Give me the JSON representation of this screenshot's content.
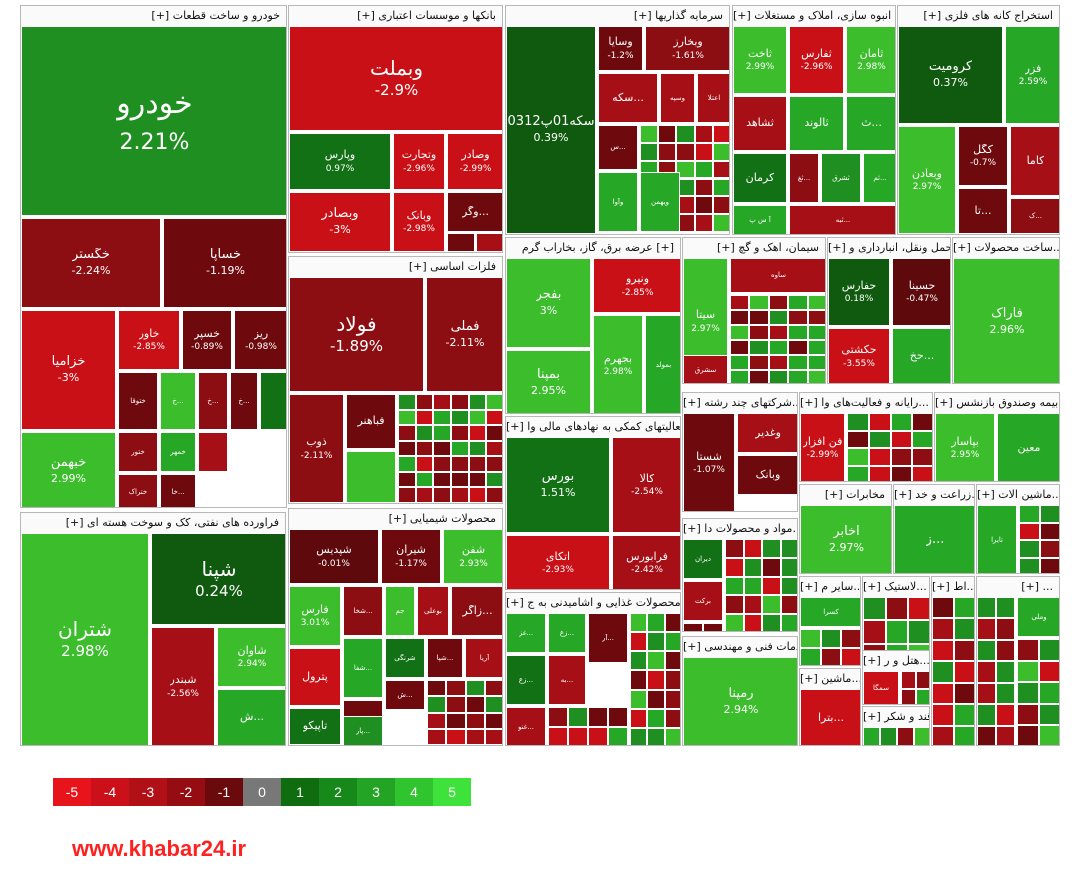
{
  "chart_data": {
    "type": "treemap",
    "sectors": [
      {
        "id": "auto",
        "title": "[+] خودرو و ساخت قطعات",
        "tiles": [
          {
            "name": "خودرو",
            "value": "2.21%",
            "change": 2.21
          },
          {
            "name": "خگستر",
            "value": "-2.24%",
            "change": -2.24
          },
          {
            "name": "خساپا",
            "value": "-1.19%",
            "change": -1.19
          },
          {
            "name": "خزامیا",
            "value": "-3%",
            "change": -3
          },
          {
            "name": "خاور",
            "value": "-2.85%",
            "change": -2.85
          },
          {
            "name": "خسپر",
            "value": "-0.89%",
            "change": -0.89
          },
          {
            "name": "ریز",
            "value": "-0.98%",
            "change": -0.98
          },
          {
            "name": "ختوقا",
            "value": "",
            "change": -1.5
          },
          {
            "name": "خ...",
            "value": "",
            "change": 3
          },
          {
            "name": "خ...",
            "value": "",
            "change": -2
          },
          {
            "name": "خ...",
            "value": "",
            "change": -1.2
          },
          {
            "name": "",
            "value": "",
            "change": 1.5
          },
          {
            "name": "خبهمن",
            "value": "2.99%",
            "change": 2.99
          },
          {
            "name": "ختور",
            "value": "",
            "change": -1.8
          },
          {
            "name": "خمهر",
            "value": "",
            "change": 2.5
          },
          {
            "name": "",
            "value": "",
            "change": -2.5
          },
          {
            "name": "ختراک",
            "value": "",
            "change": -2.2
          },
          {
            "name": "خا...",
            "value": "",
            "change": -1.3
          }
        ]
      },
      {
        "id": "banks",
        "title": "[+] بانکها و موسسات اعتباری",
        "tiles": [
          {
            "name": "وبملت",
            "value": "-2.9%",
            "change": -2.9
          },
          {
            "name": "وپارس",
            "value": "0.97%",
            "change": 0.97
          },
          {
            "name": "وتجارت",
            "value": "-2.96%",
            "change": -2.96
          },
          {
            "name": "وصادر",
            "value": "-2.99%",
            "change": -2.99
          },
          {
            "name": "وبصادر",
            "value": "-3%",
            "change": -3
          },
          {
            "name": "وبانک",
            "value": "-2.98%",
            "change": -2.98
          },
          {
            "name": "وگر...",
            "value": "",
            "change": -1.5
          },
          {
            "name": "",
            "value": "",
            "change": -1.1
          },
          {
            "name": "",
            "value": "",
            "change": -2.6
          }
        ]
      },
      {
        "id": "invest",
        "title": "[+] سرمایه گذاریها",
        "tiles": [
          {
            "name": "0312سکه01پ",
            "value": "0.39%",
            "change": 0.39
          },
          {
            "name": "وسایا",
            "value": "-1.2%",
            "change": -1.2
          },
          {
            "name": "وبخارز",
            "value": "-1.61%",
            "change": -1.61
          },
          {
            "name": "سکه...",
            "value": "",
            "change": -2.6
          },
          {
            "name": "وسپه",
            "value": "",
            "change": -2.7
          },
          {
            "name": "اعتلا",
            "value": "",
            "change": -2.4
          },
          {
            "name": "س...",
            "value": "",
            "change": -1.1
          },
          {
            "name": "وآوا",
            "value": "",
            "change": 2.4
          },
          {
            "name": "ویهمن",
            "value": "",
            "change": 2.6
          }
        ]
      },
      {
        "id": "housing",
        "title": "[+] انبوه سازی، املاک و مستغلات",
        "tiles": [
          {
            "name": "ثاخت",
            "value": "2.99%",
            "change": 2.99
          },
          {
            "name": "ثفارس",
            "value": "-2.96%",
            "change": -2.96
          },
          {
            "name": "ثامان",
            "value": "2.98%",
            "change": 2.98
          },
          {
            "name": "ثشاهد",
            "value": "",
            "change": -2.4
          },
          {
            "name": "ثالوند",
            "value": "",
            "change": 2.5
          },
          {
            "name": "ث...",
            "value": "",
            "change": 2.6
          },
          {
            "name": "کرمان",
            "value": "",
            "change": 1.3
          },
          {
            "name": "ثغ...",
            "value": "",
            "change": -2.2
          },
          {
            "name": "ثشرق",
            "value": "",
            "change": 2.3
          },
          {
            "name": "ثم...",
            "value": "",
            "change": 2.7
          },
          {
            "name": "آ س پ",
            "value": "",
            "change": 2.5
          },
          {
            "name": "ثبه...",
            "value": "",
            "change": -2.5
          }
        ]
      },
      {
        "id": "mining",
        "title": "[+] استخراج کانه های فلزی",
        "tiles": [
          {
            "name": "کرومیت",
            "value": "0.37%",
            "change": 0.37
          },
          {
            "name": "فزر",
            "value": "2.59%",
            "change": 2.59
          },
          {
            "name": "وبعادن",
            "value": "2.97%",
            "change": 2.97
          },
          {
            "name": "کگل",
            "value": "-0.7%",
            "change": -0.7
          },
          {
            "name": "کاما",
            "value": "",
            "change": -2.6
          },
          {
            "name": "تا...",
            "value": "",
            "change": -1.1
          },
          {
            "name": "ک...",
            "value": "",
            "change": -2.2
          }
        ]
      },
      {
        "id": "metals",
        "title": "[+] فلزات اساسی",
        "tiles": [
          {
            "name": "فولاد",
            "value": "-1.89%",
            "change": -1.89
          },
          {
            "name": "فملی",
            "value": "-2.11%",
            "change": -2.11
          },
          {
            "name": "ذوب",
            "value": "-2.11%",
            "change": -2.11
          },
          {
            "name": "فباهنر",
            "value": "",
            "change": -1.5
          },
          {
            "name": "",
            "value": "",
            "change": 4.5
          }
        ]
      },
      {
        "id": "chem",
        "title": "[+] محصولات شیمیایی",
        "tiles": [
          {
            "name": "شپدیس",
            "value": "-0.01%",
            "change": -0.01
          },
          {
            "name": "شیران",
            "value": "-1.17%",
            "change": -1.17
          },
          {
            "name": "شفن",
            "value": "2.93%",
            "change": 2.93
          },
          {
            "name": "فارس",
            "value": "3.01%",
            "change": 3.01
          },
          {
            "name": "شخا...",
            "value": "",
            "change": -2.3
          },
          {
            "name": "جم",
            "value": "",
            "change": 2.8
          },
          {
            "name": "بوعلی",
            "value": "",
            "change": -2.4
          },
          {
            "name": "زاگر...",
            "value": "",
            "change": -1.8
          },
          {
            "name": "شرنگی",
            "value": "",
            "change": 1.3
          },
          {
            "name": "شپا...",
            "value": "",
            "change": -1.2
          },
          {
            "name": "آریا",
            "value": "",
            "change": -2.5
          },
          {
            "name": "پترول",
            "value": "",
            "change": -2.8
          },
          {
            "name": "شفا...",
            "value": "",
            "change": 2.4
          },
          {
            "name": "ش...",
            "value": "",
            "change": -1.2
          },
          {
            "name": "تاپیکو",
            "value": "",
            "change": 1.4
          },
          {
            "name": "پار...",
            "value": "",
            "change": 2.2
          },
          {
            "name": "ش...",
            "value": "",
            "change": -1.4
          }
        ]
      },
      {
        "id": "oil",
        "title": "[+] فراورده های نفتی، کک و سوخت هسته ای",
        "tiles": [
          {
            "name": "شتران",
            "value": "2.98%",
            "change": 2.98
          },
          {
            "name": "شپنا",
            "value": "0.24%",
            "change": 0.24
          },
          {
            "name": "شبندر",
            "value": "-2.56%",
            "change": -2.56
          },
          {
            "name": "شاوان",
            "value": "2.94%",
            "change": 2.94
          },
          {
            "name": "ش...",
            "value": "",
            "change": 2.5
          }
        ]
      },
      {
        "id": "power",
        "title": "عرضه برق، گاز، بخاراب گرم [+]",
        "tiles": [
          {
            "name": "بفجر",
            "value": "3%",
            "change": 3
          },
          {
            "name": "ونیرو",
            "value": "-2.85%",
            "change": -2.85
          },
          {
            "name": "بمپنا",
            "value": "2.95%",
            "change": 2.95
          },
          {
            "name": "بجهرم",
            "value": "2.98%",
            "change": 2.98
          },
          {
            "name": "بمولد",
            "value": "",
            "change": 2.7
          }
        ]
      },
      {
        "id": "financial",
        "title": "[+] فعالیتهای کمکی به نهادهای مالی وا...",
        "tiles": [
          {
            "name": "بورس",
            "value": "1.51%",
            "change": 1.51
          },
          {
            "name": "کالا",
            "value": "-2.54%",
            "change": -2.54
          },
          {
            "name": "اتکای",
            "value": "-2.93%",
            "change": -2.93
          },
          {
            "name": "فرابورس",
            "value": "-2.42%",
            "change": -2.42
          }
        ]
      },
      {
        "id": "food",
        "title": "[+] محصولات غذایی و اشامیدنی به ج...",
        "tiles": [
          {
            "name": "غز...",
            "value": "",
            "change": 2.4
          },
          {
            "name": "زع...",
            "value": "",
            "change": 2.6
          },
          {
            "name": "آر...",
            "value": "",
            "change": -1.4
          },
          {
            "name": "زع...",
            "value": "",
            "change": 1.3
          },
          {
            "name": "به...",
            "value": "",
            "change": -2.4
          },
          {
            "name": "غنو...",
            "value": "",
            "change": -2.5
          }
        ]
      },
      {
        "id": "cement",
        "title": "[+] سیمان، اهک و گچ",
        "tiles": [
          {
            "name": "سیتا",
            "value": "2.97%",
            "change": 2.97
          },
          {
            "name": "ساوه",
            "value": "",
            "change": -2.6
          },
          {
            "name": "سشرق",
            "value": "",
            "change": -2.5
          }
        ]
      },
      {
        "id": "transport",
        "title": "[+] حمل ونقل، انبارداری و...",
        "tiles": [
          {
            "name": "حفارس",
            "value": "0.18%",
            "change": 0.18
          },
          {
            "name": "حسینا",
            "value": "-0.47%",
            "change": -0.47
          },
          {
            "name": "حکشتی",
            "value": "-3.55%",
            "change": -3.55
          },
          {
            "name": "حخ...",
            "value": "",
            "change": 2.5
          }
        ]
      },
      {
        "id": "fabric",
        "title": "[+] ساخت محصولات...",
        "tiles": [
          {
            "name": "فاراک",
            "value": "2.96%",
            "change": 2.96
          }
        ]
      },
      {
        "id": "multi",
        "title": "[+] شرکتهای چند رشته...",
        "tiles": [
          {
            "name": "وغدیر",
            "value": "",
            "change": -2.7
          },
          {
            "name": "وبانک",
            "value": "",
            "change": -1.2
          },
          {
            "name": "شستا",
            "value": "-1.07%",
            "change": -1.07
          }
        ]
      },
      {
        "id": "it",
        "title": "[+] رایانه و فعالیت‌های وا...",
        "tiles": [
          {
            "name": "فن افزار",
            "value": "-2.99%",
            "change": -2.99
          }
        ]
      },
      {
        "id": "insurance",
        "title": "[+] بیمه وصندوق بازنشس...",
        "tiles": [
          {
            "name": "بپاسار",
            "value": "2.95%",
            "change": 2.95
          },
          {
            "name": "معین",
            "value": "",
            "change": 2.6
          }
        ]
      },
      {
        "id": "pharma",
        "title": "[+] مواد و محصولات دا...",
        "tiles": [
          {
            "name": "دیران",
            "value": "",
            "change": 1.3
          },
          {
            "name": "برکت",
            "value": "",
            "change": -2.5
          }
        ]
      },
      {
        "id": "telecom",
        "title": "[+] مخابرات",
        "tiles": [
          {
            "name": "اخابر",
            "value": "2.97%",
            "change": 2.97
          }
        ]
      },
      {
        "id": "agri",
        "title": "[+] زراعت و خد...",
        "tiles": [
          {
            "name": "ز...",
            "value": "",
            "change": 2.5
          }
        ]
      },
      {
        "id": "machinery",
        "title": "[+] ماشین الات...",
        "tiles": [
          {
            "name": "تایرا",
            "value": "",
            "change": 2.4
          }
        ]
      },
      {
        "id": "other_mining",
        "title": "[+] سایر م...",
        "tiles": [
          {
            "name": "کسرا",
            "value": "",
            "change": 2.6
          }
        ]
      },
      {
        "id": "rubber",
        "title": "[+] لاستیک...",
        "tiles": []
      },
      {
        "id": "eng",
        "title": "[+] خدمات فنی و مهندسی",
        "tiles": [
          {
            "name": "رمپنا",
            "value": "2.94%",
            "change": 2.94
          }
        ]
      },
      {
        "id": "ceramic",
        "title": "[+] ماشین...",
        "tiles": [
          {
            "name": "بترا...",
            "value": "",
            "change": -3
          }
        ]
      },
      {
        "id": "hotel",
        "title": "[+] هتل و ر...",
        "tiles": [
          {
            "name": "سمگا",
            "value": "",
            "change": -2.8
          }
        ]
      },
      {
        "id": "sugar",
        "title": "[+] قند و شکر",
        "tiles": []
      },
      {
        "id": "misc1",
        "title": "[+] اط...",
        "tiles": []
      },
      {
        "id": "misc2",
        "title": "[+] ...",
        "tiles": [
          {
            "name": "وملی",
            "value": "",
            "change": 2.5
          }
        ]
      }
    ],
    "legend": [
      "-5",
      "-4",
      "-3",
      "-2",
      "-1",
      "0",
      "1",
      "2",
      "3",
      "4",
      "5"
    ]
  },
  "legend_colors": [
    "#e8141c",
    "#cc1019",
    "#b01016",
    "#950d13",
    "#6b0a0d",
    "#787878",
    "#0f6c0f",
    "#17881a",
    "#23a424",
    "#30c42e",
    "#3ee23a"
  ],
  "watermark": "www.khabar24.ir"
}
